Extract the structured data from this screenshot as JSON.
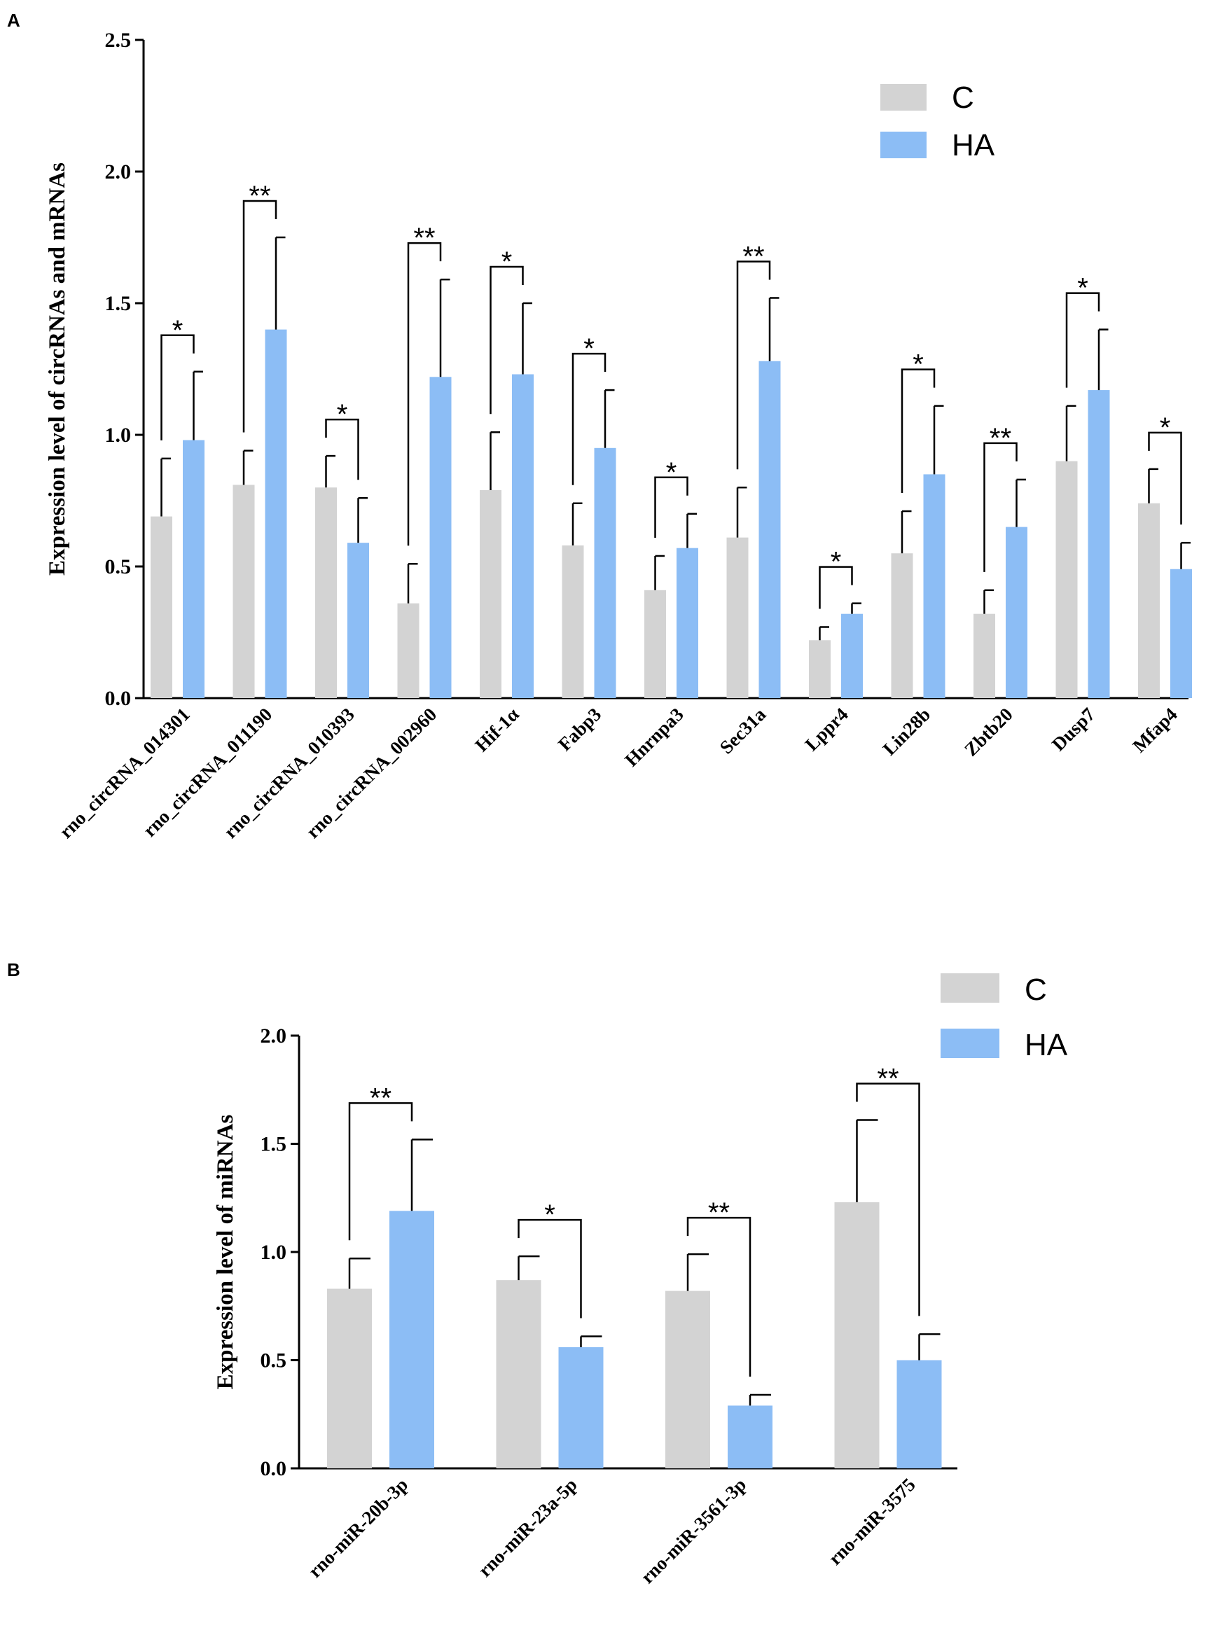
{
  "colors": {
    "C": "#d3d3d3",
    "HA": "#8cbdf5",
    "axis": "#000000"
  },
  "chart_data": [
    {
      "type": "bar",
      "panel_label": "A",
      "ylabel": "Expression level of circRNAs and mRNAs",
      "xlabel": "",
      "ylim": [
        0,
        2.5
      ],
      "yticks": [
        0.0,
        0.5,
        1.0,
        1.5,
        2.0,
        2.5
      ],
      "ytick_labels": [
        "0.0",
        "0.5",
        "1.0",
        "1.5",
        "2.0",
        "2.5"
      ],
      "legend_position": "top-right",
      "categories": [
        "rno_circRNA_014301",
        "rno_circRNA_011190",
        "rno_circRNA_010393",
        "rno_circRNA_002960",
        "Hif-1α",
        "Fabp3",
        "Hnrnpa3",
        "Sec31a",
        "Lppr4",
        "Lin28b",
        "Zbtb20",
        "Dusp7",
        "Mfap4"
      ],
      "series": [
        {
          "name": "C",
          "values": [
            0.69,
            0.81,
            0.8,
            0.36,
            0.79,
            0.58,
            0.41,
            0.61,
            0.22,
            0.55,
            0.32,
            0.9,
            0.74
          ],
          "errors": [
            0.22,
            0.13,
            0.12,
            0.15,
            0.22,
            0.16,
            0.13,
            0.19,
            0.05,
            0.16,
            0.09,
            0.21,
            0.13
          ]
        },
        {
          "name": "HA",
          "values": [
            0.98,
            1.4,
            0.59,
            1.22,
            1.23,
            0.95,
            0.57,
            1.28,
            0.32,
            0.85,
            0.65,
            1.17,
            0.49
          ],
          "errors": [
            0.26,
            0.35,
            0.17,
            0.37,
            0.27,
            0.22,
            0.13,
            0.24,
            0.04,
            0.26,
            0.18,
            0.23,
            0.1
          ]
        }
      ],
      "significance": [
        "*",
        "**",
        "*",
        "**",
        "*",
        "*",
        "*",
        "**",
        "*",
        "*",
        "**",
        "*",
        "*"
      ]
    },
    {
      "type": "bar",
      "panel_label": "B",
      "ylabel": "Expression level of miRNAs",
      "xlabel": "",
      "ylim": [
        0,
        2.0
      ],
      "yticks": [
        0.0,
        0.5,
        1.0,
        1.5,
        2.0
      ],
      "ytick_labels": [
        "0.0",
        "0.5",
        "1.0",
        "1.5",
        "2.0"
      ],
      "legend_position": "top-right",
      "categories": [
        "rno-miR-20b-3p",
        "rno-miR-23a-5p",
        "rno-miR-3561-3p",
        "rno-miR-3575"
      ],
      "series": [
        {
          "name": "C",
          "values": [
            0.83,
            0.87,
            0.82,
            1.23
          ],
          "errors": [
            0.14,
            0.11,
            0.17,
            0.38
          ]
        },
        {
          "name": "HA",
          "values": [
            1.19,
            0.56,
            0.29,
            0.5
          ],
          "errors": [
            0.33,
            0.05,
            0.05,
            0.12
          ]
        }
      ],
      "significance": [
        "**",
        "*",
        "**",
        "**"
      ]
    }
  ]
}
